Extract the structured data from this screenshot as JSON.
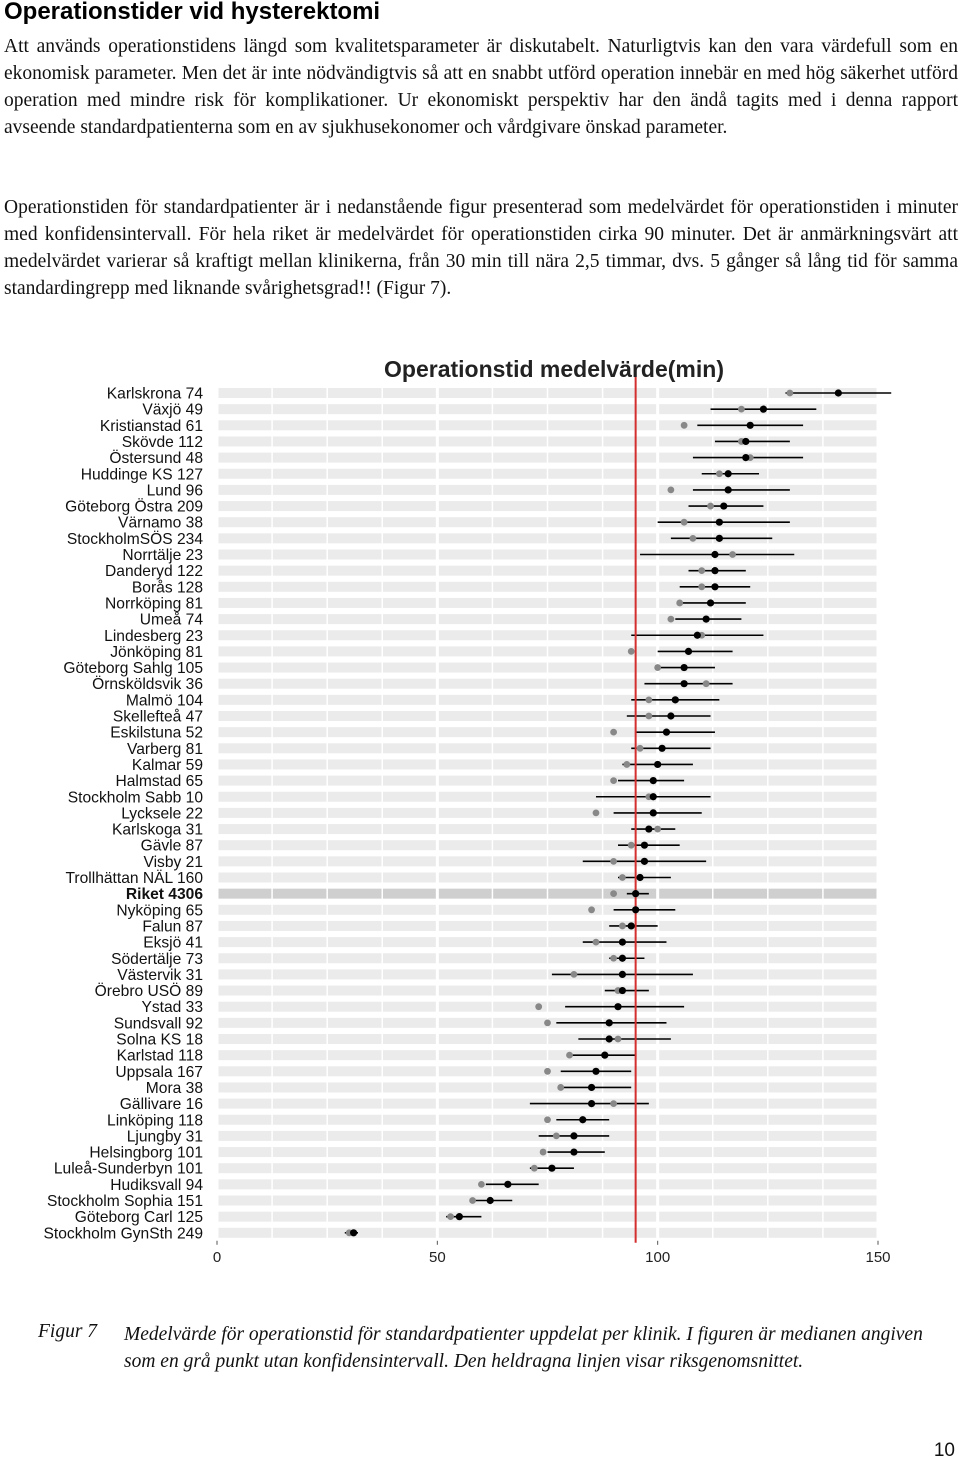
{
  "heading": "Operationstider vid hysterektomi",
  "paragraph_1": "Att används operationstidens längd som kvalitetsparameter är diskutabelt. Naturligtvis kan den vara värdefull som en ekonomisk parameter. Men det är inte nödvändigtvis så att en snabbt utförd operation innebär en med hög säkerhet utförd operation med mindre risk för komplikationer. Ur ekonomiskt perspektiv har den ändå tagits med i denna rapport avseende standardpatienterna som en av sjukhusekonomer och vårdgivare önskad parameter.",
  "paragraph_2": "Operationstiden för standardpatienter är i nedanstående figur presenterad som medelvärdet för operationstiden i minuter med konfidensintervall. För hela riket är medelvärdet för operationstiden cirka 90 minuter. Det är anmärkningsvärt att medelvärdet varierar så kraftigt mellan klinikerna, från 30 min till nära 2,5 timmar, dvs. 5 gånger så lång tid för samma standardingrepp med liknande svårighetsgrad!! (Figur 7).",
  "caption": {
    "label": "Figur 7",
    "text": "Medelvärde för operationstid för standardpatienter uppdelat per klinik. I figuren är medianen angiven som en grå punkt utan konfidensintervall. Den heldragna linjen visar riksgenomsnittet."
  },
  "page_number": "10",
  "chart_data": {
    "type": "scatter",
    "title": "Operationstid medelvärde(min)",
    "xlim": [
      0,
      150
    ],
    "x_ticks": [
      0,
      50,
      100,
      150
    ],
    "reference_line": 95,
    "grid": true,
    "colors": {
      "mean": "#000000",
      "median": "#888888",
      "ci": "#000000",
      "reference": "#d32f2f",
      "row_band": "#ebebeb",
      "highlight_band": "#cfcfcf"
    },
    "categories": [
      "Karlskrona 74",
      "Växjö 49",
      "Kristianstad 61",
      "Skövde 112",
      "Östersund 48",
      "Huddinge KS 127",
      "Lund 96",
      "Göteborg Östra 209",
      "Värnamo 38",
      "StockholmSÖS 234",
      "Norrtälje 23",
      "Danderyd 122",
      "Borås 128",
      "Norrköping 81",
      "Umeå 74",
      "Lindesberg 23",
      "Jönköping 81",
      "Göteborg Sahlg 105",
      "Örnsköldsvik 36",
      "Malmö 104",
      "Skellefteå 47",
      "Eskilstuna 52",
      "Varberg 81",
      "Kalmar 59",
      "Halmstad 65",
      "Stockholm Sabb 10",
      "Lycksele 22",
      "Karlskoga 31",
      "Gävle 87",
      "Visby 21",
      "Trollhättan NÄL 160",
      "Riket 4306",
      "Nyköping 65",
      "Falun 87",
      "Eksjö 41",
      "Södertälje 73",
      "Västervik 31",
      "Örebro USÖ 89",
      "Ystad 33",
      "Sundsvall 92",
      "Solna KS 18",
      "Karlstad 118",
      "Uppsala 167",
      "Mora 38",
      "Gällivare 16",
      "Linköping 118",
      "Ljungby 31",
      "Helsingborg 101",
      "Luleå-Sunderbyn 101",
      "Hudiksvall 94",
      "Stockholm Sophia 151",
      "Göteborg Carl 125",
      "Stockholm GynSth 249"
    ],
    "highlight_category": "Riket 4306",
    "series": [
      {
        "name": "Medelvärde",
        "values": [
          141,
          124,
          121,
          120,
          120,
          116,
          116,
          115,
          114,
          114,
          113,
          113,
          113,
          112,
          111,
          109,
          107,
          106,
          106,
          104,
          103,
          102,
          101,
          100,
          99,
          99,
          99,
          98,
          97,
          97,
          96,
          95,
          95,
          94,
          92,
          92,
          92,
          92,
          91,
          89,
          89,
          88,
          86,
          85,
          85,
          83,
          81,
          81,
          76,
          66,
          62,
          55,
          31
        ]
      },
      {
        "name": "Median",
        "values": [
          130,
          119,
          106,
          119,
          121,
          114,
          103,
          112,
          106,
          108,
          117,
          110,
          110,
          105,
          103,
          110,
          94,
          100,
          111,
          98,
          98,
          90,
          96,
          93,
          90,
          98,
          86,
          100,
          94,
          90,
          92,
          90,
          85,
          92,
          86,
          90,
          81,
          91,
          73,
          75,
          91,
          80,
          75,
          78,
          90,
          75,
          77,
          74,
          72,
          60,
          58,
          53,
          30
        ]
      },
      {
        "name": "Konfidensintervall låg",
        "values": [
          129,
          112,
          109,
          113,
          108,
          110,
          108,
          107,
          100,
          103,
          96,
          107,
          105,
          105,
          104,
          94,
          100,
          100,
          97,
          94,
          93,
          95,
          94,
          92,
          91,
          86,
          90,
          94,
          91,
          83,
          91,
          93,
          90,
          89,
          83,
          89,
          76,
          88,
          79,
          77,
          82,
          80,
          78,
          78,
          71,
          77,
          73,
          75,
          71,
          61,
          58,
          52,
          29
        ]
      },
      {
        "name": "Konfidensintervall hög",
        "values": [
          153,
          136,
          133,
          130,
          133,
          123,
          130,
          124,
          130,
          126,
          131,
          120,
          121,
          120,
          119,
          124,
          117,
          113,
          117,
          114,
          112,
          113,
          112,
          108,
          106,
          112,
          110,
          104,
          105,
          111,
          103,
          98,
          104,
          100,
          102,
          97,
          108,
          98,
          106,
          102,
          103,
          95,
          94,
          94,
          98,
          89,
          89,
          88,
          81,
          73,
          67,
          60,
          32
        ]
      }
    ]
  }
}
